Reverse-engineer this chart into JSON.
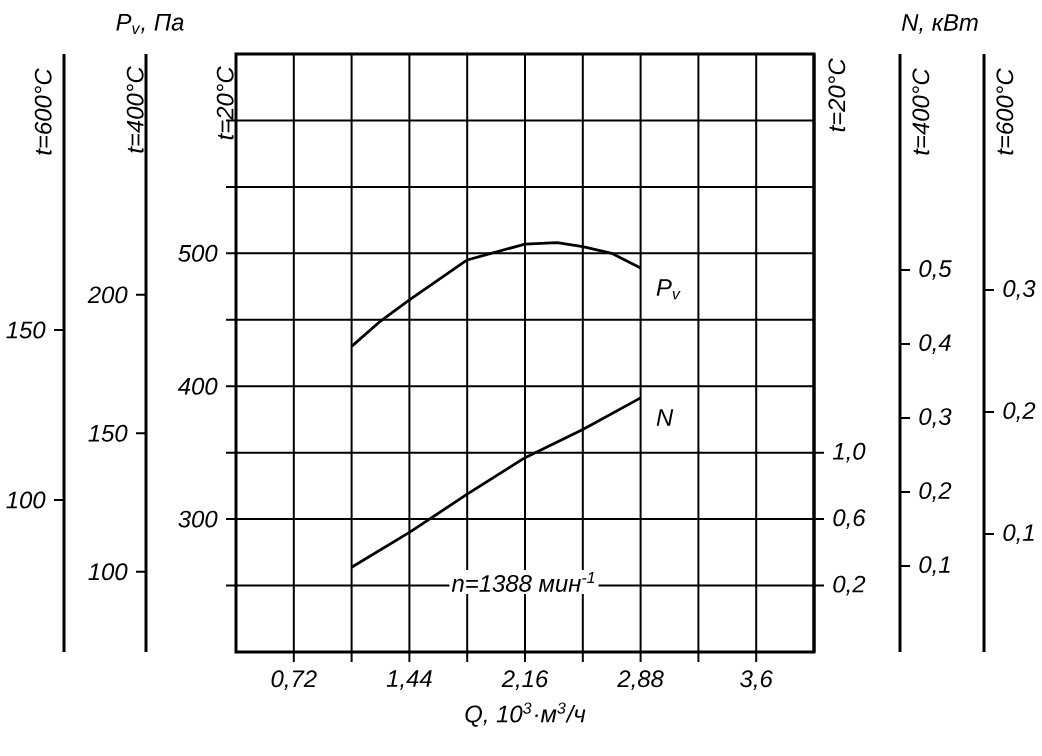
{
  "chart_data": {
    "type": "line",
    "xlabel": "Q, 10$^{3}$·м$^{3}$/ч",
    "ylabel": "t=20°C",
    "y2label": "t=20°C",
    "y3label": "t=400°C",
    "annotations": [
      "P$_{v}$, Па",
      "N, кВт",
      "n=1388 мин$^{-1}$",
      "t=600°C",
      "150",
      "100",
      "t=400°C",
      "0,5",
      "0,4",
      "0,3",
      "0,2",
      "0,1",
      "t=600°C",
      "0,3",
      "0,2",
      "0,1"
    ],
    "xlim": [
      0.36,
      3.96
    ],
    "xticks": [
      {
        "value": 0.72,
        "label": "0,72"
      },
      {
        "value": 1.08,
        "label": null
      },
      {
        "value": 1.44,
        "label": "1,44"
      },
      {
        "value": 1.8,
        "label": null
      },
      {
        "value": 2.16,
        "label": "2,16"
      },
      {
        "value": 2.52,
        "label": null
      },
      {
        "value": 2.88,
        "label": "2,88"
      },
      {
        "value": 3.24,
        "label": null
      },
      {
        "value": 3.6,
        "label": "3,6"
      }
    ],
    "ylim": [
      200,
      650
    ],
    "yticks": [
      {
        "value": 250,
        "label": null
      },
      300,
      {
        "value": 350,
        "label": null
      },
      400,
      {
        "value": 450,
        "label": null
      },
      500,
      {
        "value": 550,
        "label": null
      },
      {
        "value": 600,
        "label": null
      }
    ],
    "y2lim": [
      -0.2,
      3.4
    ],
    "y2ticks": [
      {
        "value": 0.2,
        "label": "0,2"
      },
      {
        "value": 0.6,
        "label": "0,6"
      },
      {
        "value": 1.0,
        "label": "1,0"
      }
    ],
    "y3lim": [
      71,
      287
    ],
    "y3ticks": [
      100,
      150,
      200
    ],
    "grid": true,
    "marker": "none",
    "line_style": "solid",
    "series": [
      {
        "name": "P$_{v}$",
        "color": "#000000",
        "axis": "y",
        "x": [
          1.08,
          1.25,
          1.44,
          1.8,
          2.16,
          2.36,
          2.52,
          2.7,
          2.88
        ],
        "values": [
          430,
          448,
          465,
          495,
          507,
          508,
          505,
          500,
          489
        ]
      },
      {
        "name": "N",
        "color": "#000000",
        "axis": "y2",
        "x": [
          1.08,
          1.44,
          1.8,
          2.16,
          2.52,
          2.88
        ],
        "values": [
          0.31,
          0.52,
          0.75,
          0.97,
          1.14,
          1.33
        ]
      }
    ]
  }
}
